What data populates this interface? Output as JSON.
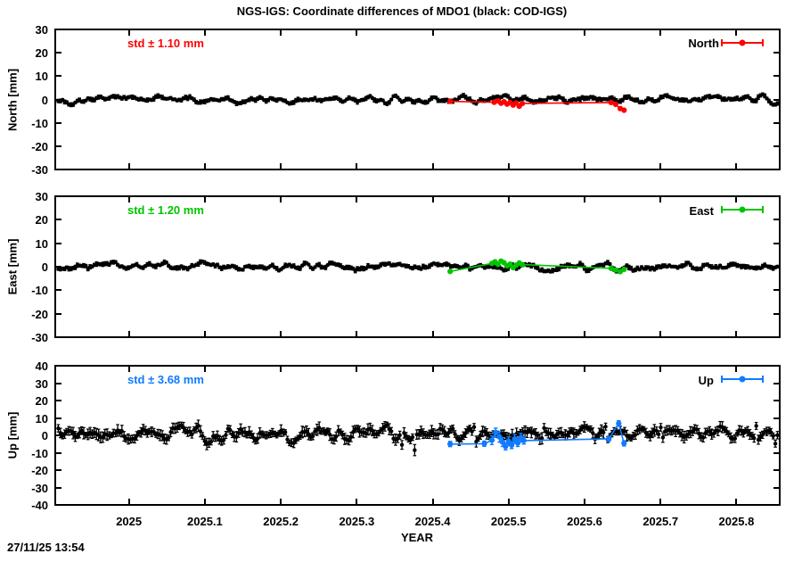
{
  "chart": {
    "title": "NGS-IGS: Coordinate differences of MDO1 (black: COD-IGS)"
  },
  "footer": {
    "timestamp": "27/11/25 13:54"
  },
  "chart_data": {
    "type": "scatter",
    "title": "NGS-IGS: Coordinate differences of MDO1 (black: COD-IGS)",
    "xlabel": "YEAR",
    "xlim": [
      2024.903,
      2025.857
    ],
    "grid": false,
    "background": "#ffffff",
    "axis_color": "#000000",
    "x_ticks": {
      "values": [
        2025,
        2025.1,
        2025.2,
        2025.3,
        2025.4,
        2025.5,
        2025.6,
        2025.7,
        2025.8
      ],
      "labels": [
        "2025",
        "2025.1",
        "2025.2",
        "2025.3",
        "2025.4",
        "2025.5",
        "2025.6",
        "2025.7",
        "2025.8"
      ]
    },
    "panels": [
      {
        "id": "north",
        "ylabel": "North [mm]",
        "ylim": [
          -30,
          30
        ],
        "y_ticks": {
          "values": [
            30,
            20,
            10,
            0,
            -10,
            -20,
            -30
          ],
          "labels": [
            "30",
            "20",
            "10",
            "0",
            "-10",
            "-20",
            "-30"
          ]
        },
        "std_label": "std ± 1.10 mm",
        "std_value_mm": 1.1,
        "legend_label": "North",
        "color": "#ff0000",
        "black": {
          "n_points": 340,
          "seed": 101,
          "noise_std_mm": 1.1,
          "errorbar_mm": 0.7,
          "outliers": []
        },
        "ngs_points": [
          [
            2025.423,
            -0.8,
            0.6
          ],
          [
            2025.481,
            -1.2,
            0.6
          ],
          [
            2025.486,
            -0.6,
            0.6
          ],
          [
            2025.49,
            -1.6,
            0.6
          ],
          [
            2025.494,
            -1.0,
            0.6
          ],
          [
            2025.498,
            -2.0,
            0.6
          ],
          [
            2025.502,
            -1.3,
            0.6
          ],
          [
            2025.506,
            -2.4,
            0.6
          ],
          [
            2025.51,
            -1.5,
            0.6
          ],
          [
            2025.514,
            -2.9,
            0.6
          ],
          [
            2025.518,
            -1.7,
            0.6
          ],
          [
            2025.635,
            -1.3,
            0.6
          ],
          [
            2025.641,
            -2.1,
            0.7
          ],
          [
            2025.647,
            -3.9,
            0.7
          ],
          [
            2025.652,
            -4.6,
            0.7
          ]
        ]
      },
      {
        "id": "east",
        "ylabel": "East [mm]",
        "ylim": [
          -30,
          30
        ],
        "y_ticks": {
          "values": [
            30,
            20,
            10,
            0,
            -10,
            -20,
            -30
          ],
          "labels": [
            "30",
            "20",
            "10",
            "0",
            "-10",
            "-20",
            "-30"
          ]
        },
        "std_label": "std ± 1.20 mm",
        "std_value_mm": 1.2,
        "legend_label": "East",
        "color": "#00c400",
        "black": {
          "n_points": 340,
          "seed": 202,
          "noise_std_mm": 1.2,
          "errorbar_mm": 0.7,
          "outliers": []
        },
        "ngs_points": [
          [
            2025.423,
            -2.0,
            0.6
          ],
          [
            2025.478,
            1.4,
            0.6
          ],
          [
            2025.482,
            2.1,
            0.6
          ],
          [
            2025.486,
            1.0,
            0.6
          ],
          [
            2025.49,
            2.4,
            0.6
          ],
          [
            2025.494,
            1.7,
            0.6
          ],
          [
            2025.498,
            0.4,
            0.6
          ],
          [
            2025.502,
            1.1,
            0.6
          ],
          [
            2025.506,
            -0.4,
            0.6
          ],
          [
            2025.51,
            0.7,
            0.6
          ],
          [
            2025.514,
            1.6,
            0.6
          ],
          [
            2025.518,
            0.9,
            0.6
          ],
          [
            2025.635,
            -0.7,
            0.6
          ],
          [
            2025.641,
            -1.4,
            0.6
          ],
          [
            2025.647,
            -2.1,
            0.6
          ],
          [
            2025.652,
            -1.1,
            0.6
          ]
        ]
      },
      {
        "id": "up",
        "ylabel": "Up [mm]",
        "ylim": [
          -40,
          40
        ],
        "y_ticks": {
          "values": [
            40,
            30,
            20,
            10,
            0,
            -10,
            -20,
            -30,
            -40
          ],
          "labels": [
            "40",
            "30",
            "20",
            "10",
            "0",
            "-10",
            "-20",
            "-30",
            "-40"
          ]
        },
        "std_label": "std ± 3.68 mm",
        "std_value_mm": 3.68,
        "legend_label": "Up",
        "color": "#0f7bff",
        "black": {
          "n_points": 340,
          "seed": 303,
          "noise_std_mm": 3.0,
          "errorbar_mm": 2.4,
          "outliers": [
            [
              2025.36,
              -5.5,
              2.5
            ],
            [
              2025.377,
              -8.5,
              3.2
            ],
            [
              2025.455,
              4.8,
              2.0
            ],
            [
              2025.547,
              4.2,
              2.6
            ],
            [
              2025.627,
              5.0,
              2.0
            ],
            [
              2025.7,
              4.6,
              2.2
            ],
            [
              2025.826,
              5.4,
              2.0
            ],
            [
              2025.852,
              -4.8,
              2.0
            ]
          ]
        },
        "ngs_points": [
          [
            2025.423,
            -5.0,
            1.5
          ],
          [
            2025.468,
            -4.8,
            1.5
          ],
          [
            2025.478,
            -2.8,
            2.5
          ],
          [
            2025.483,
            1.6,
            2.5
          ],
          [
            2025.488,
            -0.9,
            3.0
          ],
          [
            2025.492,
            -3.9,
            2.5
          ],
          [
            2025.496,
            -6.4,
            2.0
          ],
          [
            2025.5,
            -3.4,
            2.5
          ],
          [
            2025.504,
            -5.6,
            2.0
          ],
          [
            2025.508,
            -2.1,
            2.5
          ],
          [
            2025.512,
            -4.4,
            2.0
          ],
          [
            2025.516,
            -1.4,
            2.5
          ],
          [
            2025.52,
            -3.0,
            2.0
          ],
          [
            2025.632,
            -2.0,
            1.5
          ],
          [
            2025.645,
            6.8,
            1.6
          ],
          [
            2025.652,
            -4.6,
            1.5
          ]
        ]
      }
    ]
  }
}
